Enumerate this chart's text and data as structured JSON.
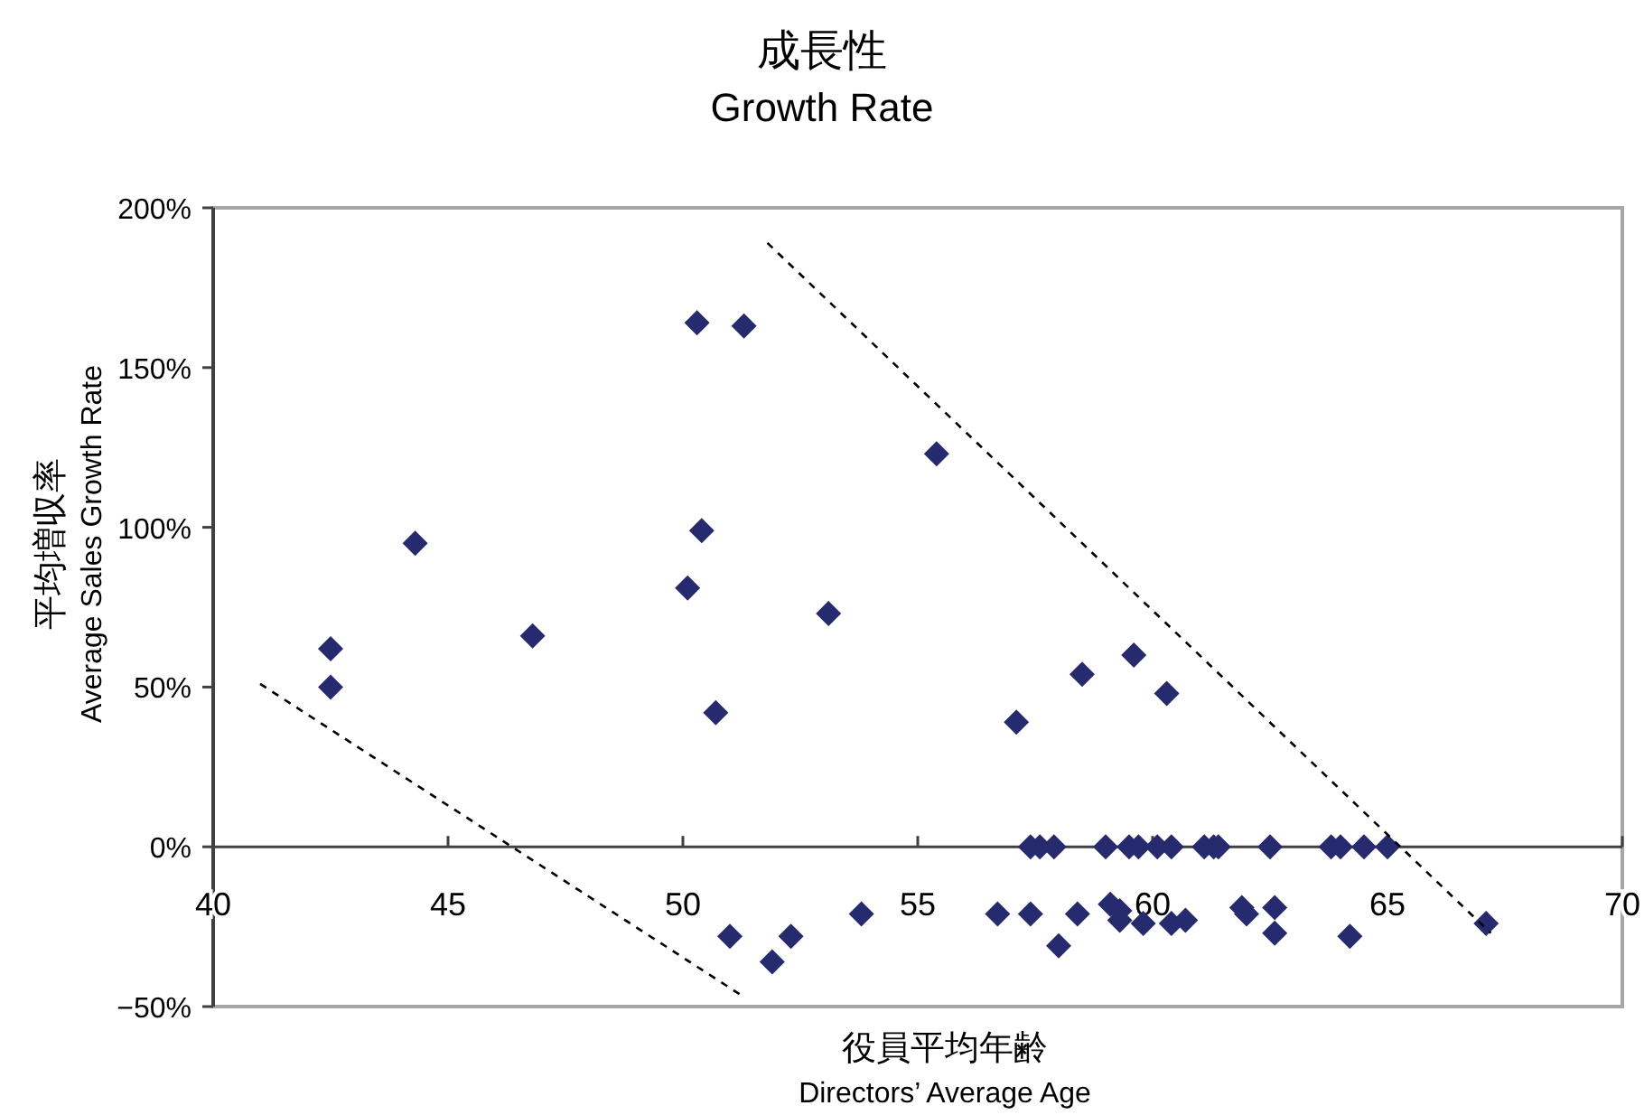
{
  "chart_data": {
    "type": "scatter",
    "title": "成長性",
    "subtitle": "Growth Rate",
    "xlabel": "役員平均年齢\nDirectors’ Average Age",
    "ylabel": "平均増収率\nAverage Sales Growth Rate",
    "xlim": [
      40,
      70
    ],
    "xticks": [
      40,
      45,
      50,
      55,
      60,
      65,
      70
    ],
    "ylim": [
      -50,
      200
    ],
    "yticks": [
      {
        "value": -50,
        "label": "−50%"
      },
      {
        "value": 0,
        "label": "0%"
      },
      {
        "value": 50,
        "label": "50%"
      },
      {
        "value": 100,
        "label": "100%"
      },
      {
        "value": 150,
        "label": "150%"
      },
      {
        "value": 200,
        "label": "200%"
      }
    ],
    "marker": "diamond",
    "series": [
      {
        "type": "scatter",
        "color": "#262a6e",
        "x": [
          42.5,
          42.5,
          44.3,
          46.8,
          50.1,
          50.3,
          51.3,
          50.4,
          50.7,
          53.1,
          55.4,
          51.0,
          51.9,
          52.3,
          53.8,
          57.1,
          58.5,
          59.6,
          60.3,
          57.4,
          57.6,
          57.9,
          59.0,
          59.5,
          59.7,
          60.1,
          60.4,
          61.1,
          61.3,
          61.4,
          62.5,
          63.8,
          64.0,
          64.5,
          65.0,
          56.7,
          57.4,
          58.0,
          58.4,
          59.1,
          59.3,
          59.3,
          59.8,
          60.4,
          60.7,
          61.9,
          62.0,
          62.6,
          62.6,
          64.2,
          67.1
        ],
        "values": [
          62,
          50,
          95,
          66,
          81,
          164,
          163,
          99,
          42,
          73,
          123,
          -28,
          -36,
          -28,
          -21,
          39,
          54,
          60,
          48,
          0,
          0,
          0,
          0,
          0,
          0,
          0,
          0,
          0,
          0,
          0,
          0,
          0,
          0,
          0,
          0,
          -21,
          -21,
          -31,
          -21,
          -18,
          -20,
          -23,
          -24,
          -24,
          -23,
          -19,
          -21,
          -19,
          -27,
          -28,
          -24
        ]
      },
      {
        "type": "line",
        "color": "#000000",
        "line_style": "dashed",
        "marker": "none",
        "x": [
          41.0,
          51.3
        ],
        "values": [
          51,
          -47
        ]
      },
      {
        "type": "line",
        "color": "#000000",
        "line_style": "dashed",
        "marker": "none",
        "x": [
          51.8,
          67.2
        ],
        "values": [
          189,
          -27
        ]
      }
    ]
  }
}
